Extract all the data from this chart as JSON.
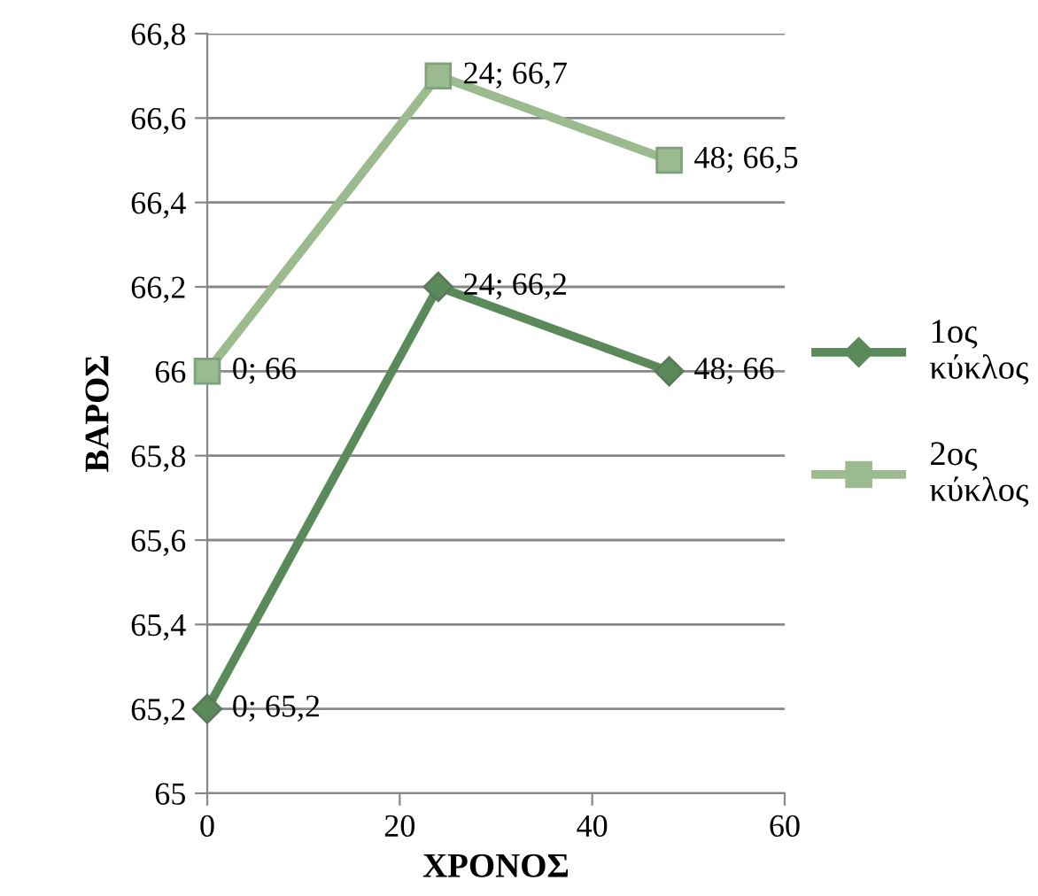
{
  "chart_data": {
    "type": "line",
    "xlabel": "ΧΡΟΝΟΣ",
    "ylabel": "ΒΑΡΟΣ",
    "x": [
      0,
      24,
      48
    ],
    "series": [
      {
        "name": "1ος κύκλος",
        "color": "#5a8a5a",
        "marker": "diamond",
        "values": [
          65.2,
          66.2,
          66.0
        ],
        "value_labels": [
          "0; 65,2",
          "24; 66,2",
          "48; 66"
        ]
      },
      {
        "name": "2ος κύκλος",
        "color": "#9bbb8f",
        "marker": "square",
        "values": [
          66.0,
          66.7,
          66.5
        ],
        "value_labels": [
          "0; 66",
          "24; 66,7",
          "48; 66,5"
        ]
      }
    ],
    "xlim": [
      0,
      60
    ],
    "xticks": [
      0,
      20,
      40,
      60
    ],
    "ylim": [
      65,
      66.8
    ],
    "yticks": [
      65,
      {
        "value": 65.2,
        "label": "65,2"
      },
      {
        "value": 65.4,
        "label": "65,4"
      },
      {
        "value": 65.6,
        "label": "65,6"
      },
      {
        "value": 65.8,
        "label": "65,8"
      },
      66,
      {
        "value": 66.2,
        "label": "66,2"
      },
      {
        "value": 66.4,
        "label": "66,4"
      },
      {
        "value": 66.6,
        "label": "66,6"
      },
      {
        "value": 66.8,
        "label": "66,8"
      }
    ],
    "grid": "y",
    "legend": "right",
    "line_style": "solid"
  }
}
